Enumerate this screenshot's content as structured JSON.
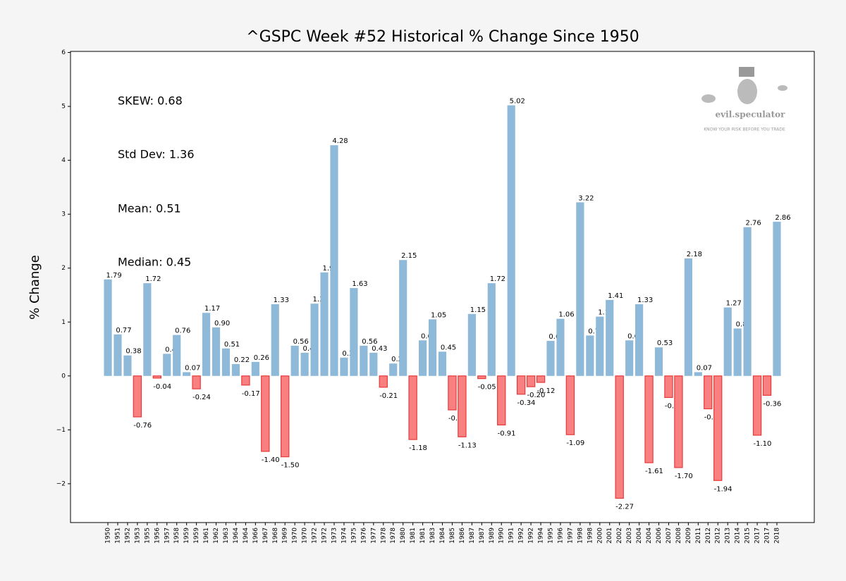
{
  "chart_data": {
    "type": "bar",
    "title": "^GSPC Week #52 Historical % Change Since 1950",
    "y_label": "% Change",
    "annotations": [
      "SKEW: 0.68",
      "Std Dev: 1.36",
      "Mean: 0.51",
      "Median: 0.45"
    ],
    "watermark": [
      "evil.speculator",
      "KNOW YOUR RISK BEFORE YOU TRADE"
    ],
    "categories": [
      "1950",
      "1951",
      "1952",
      "1953",
      "1955",
      "1956",
      "1957",
      "1958",
      "1959",
      "1959",
      "1961",
      "1962",
      "1963",
      "1964",
      "1964",
      "1966",
      "1967",
      "1968",
      "1969",
      "1970",
      "1970",
      "1972",
      "1972",
      "1973",
      "1974",
      "1975",
      "1976",
      "1977",
      "1978",
      "1978",
      "1980",
      "1981",
      "1981",
      "1983",
      "1984",
      "1985",
      "1986",
      "1987",
      "1987",
      "1989",
      "1990",
      "1991",
      "1992",
      "1992",
      "1994",
      "1995",
      "1996",
      "1997",
      "1998",
      "1998",
      "2000",
      "2001",
      "2002",
      "2003",
      "2004",
      "2004",
      "2006",
      "2007",
      "2008",
      "2009",
      "2011",
      "2012",
      "2012",
      "2013",
      "2014",
      "2015",
      "2017",
      "2017",
      "2018"
    ],
    "values": [
      1.79,
      0.77,
      0.38,
      -0.76,
      1.72,
      -0.04,
      0.41,
      0.76,
      0.07,
      -0.24,
      1.17,
      0.9,
      0.51,
      0.22,
      -0.17,
      0.26,
      -1.4,
      1.33,
      -1.5,
      0.56,
      0.43,
      1.34,
      1.92,
      4.28,
      0.34,
      1.63,
      0.56,
      0.43,
      -0.21,
      0.23,
      2.15,
      -1.18,
      0.66,
      1.05,
      0.45,
      -0.63,
      -1.13,
      1.15,
      -0.05,
      1.72,
      -0.91,
      5.02,
      -0.34,
      -0.2,
      -0.12,
      0.65,
      1.06,
      -1.09,
      3.22,
      0.75,
      1.1,
      1.41,
      -2.27,
      0.66,
      1.33,
      -1.61,
      0.53,
      -0.4,
      -1.7,
      2.18,
      0.07,
      -0.61,
      -1.94,
      1.27,
      0.88,
      2.76,
      -1.1,
      -0.36,
      2.86
    ],
    "value_labels": [
      "1.79",
      "0.77",
      "0.38",
      "-0.76",
      "1.72",
      "-0.04",
      "0.41",
      "0.76",
      "0.07",
      "-0.24",
      "1.17",
      "0.90",
      "0.51",
      "0.22",
      "-0.17",
      "0.26",
      "-1.40",
      "1.33",
      "-1.50",
      "0.56",
      "0.43",
      "1.34",
      "1.92",
      "4.28",
      "0.34",
      "1.63",
      "0.56",
      "0.43",
      "-0.21",
      "0.23",
      "2.15",
      "-1.18",
      "0.66",
      "1.05",
      "0.45",
      "-0.63",
      "-1.13",
      "1.15",
      "-0.05",
      "1.72",
      "-0.91",
      "5.02",
      "-0.34",
      "-0.20",
      "-0.12",
      "0.65",
      "1.06",
      "-1.09",
      "3.22",
      "0.75",
      "1.10",
      "1.41",
      "-2.27",
      "0.66",
      "1.33",
      "-1.61",
      "0.53",
      "-0.40",
      "-1.70",
      "2.18",
      "0.07",
      "-0.61",
      "-1.94",
      "1.27",
      "0.88",
      "2.76",
      "-1.10",
      "-0.36",
      "2.86"
    ],
    "positive_color": "#8fb9d9",
    "negative_color": "#f88080",
    "negative_edge_color": "#e83a3a",
    "ylim": [
      -2.72,
      6.02
    ],
    "yticks": [
      {
        "value": -2,
        "label": "−2"
      },
      {
        "value": -1,
        "label": "−1"
      },
      0,
      1,
      2,
      3,
      4,
      5,
      6
    ]
  }
}
